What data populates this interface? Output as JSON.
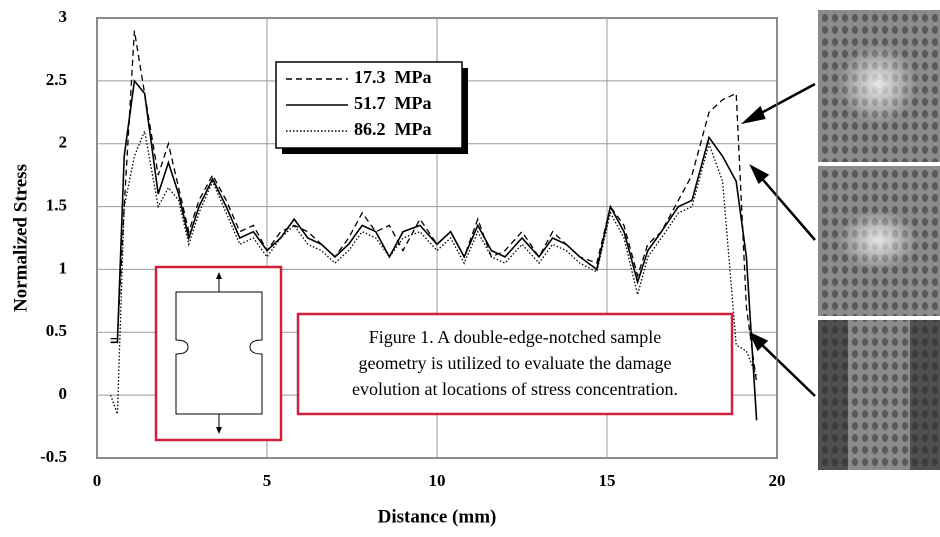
{
  "chart_data": {
    "type": "line",
    "x_label": "Distance (mm)",
    "y_label": "Normalized Stress",
    "xlim": [
      0,
      20
    ],
    "xticks": [
      0,
      5,
      10,
      15,
      20
    ],
    "ylim": [
      -0.5,
      3
    ],
    "yticks": [
      -0.5,
      0,
      0.5,
      1,
      1.5,
      2,
      2.5,
      3
    ],
    "grid": true,
    "legend_position": "upper-left",
    "x": [
      0.4,
      0.6,
      0.8,
      1.1,
      1.4,
      1.8,
      2.1,
      2.4,
      2.7,
      3.0,
      3.4,
      3.8,
      4.2,
      4.6,
      5.0,
      5.4,
      5.8,
      6.2,
      6.6,
      7.0,
      7.4,
      7.8,
      8.2,
      8.6,
      9.0,
      9.5,
      10.0,
      10.4,
      10.8,
      11.2,
      11.6,
      12.0,
      12.5,
      13.0,
      13.4,
      13.8,
      14.2,
      14.7,
      15.1,
      15.5,
      15.9,
      16.2,
      16.6,
      17.1,
      17.5,
      18.0,
      18.4,
      18.8,
      19.1,
      19.4
    ],
    "series": [
      {
        "name": "17.3  MPa",
        "color": "#000000",
        "style": "dashed",
        "values": [
          0.45,
          0.45,
          1.5,
          2.9,
          2.4,
          1.75,
          2.0,
          1.65,
          1.3,
          1.55,
          1.75,
          1.55,
          1.3,
          1.35,
          1.15,
          1.3,
          1.35,
          1.3,
          1.2,
          1.1,
          1.25,
          1.45,
          1.3,
          1.35,
          1.15,
          1.4,
          1.2,
          1.3,
          1.1,
          1.4,
          1.1,
          1.15,
          1.3,
          1.1,
          1.3,
          1.2,
          1.1,
          1.05,
          1.5,
          1.35,
          0.95,
          1.2,
          1.3,
          1.55,
          1.75,
          2.25,
          2.35,
          2.4,
          0.7,
          0.1
        ]
      },
      {
        "name": "51.7  MPa",
        "color": "#000000",
        "style": "solid",
        "values": [
          0.42,
          0.42,
          1.9,
          2.5,
          2.4,
          1.6,
          1.85,
          1.6,
          1.25,
          1.5,
          1.72,
          1.5,
          1.25,
          1.3,
          1.15,
          1.25,
          1.4,
          1.25,
          1.2,
          1.1,
          1.2,
          1.35,
          1.3,
          1.1,
          1.3,
          1.35,
          1.2,
          1.3,
          1.1,
          1.35,
          1.15,
          1.1,
          1.25,
          1.1,
          1.25,
          1.2,
          1.1,
          1.0,
          1.5,
          1.3,
          0.9,
          1.15,
          1.3,
          1.5,
          1.55,
          2.05,
          1.9,
          1.7,
          1.1,
          -0.2
        ]
      },
      {
        "name": "86.2  MPa",
        "color": "#000000",
        "style": "dotted",
        "values": [
          0.0,
          -0.15,
          1.5,
          1.9,
          2.1,
          1.5,
          1.65,
          1.55,
          1.2,
          1.45,
          1.7,
          1.45,
          1.2,
          1.25,
          1.1,
          1.25,
          1.35,
          1.2,
          1.15,
          1.05,
          1.15,
          1.3,
          1.25,
          1.1,
          1.25,
          1.3,
          1.15,
          1.25,
          1.05,
          1.3,
          1.1,
          1.05,
          1.2,
          1.05,
          1.2,
          1.15,
          1.05,
          0.98,
          1.45,
          1.25,
          0.8,
          1.1,
          1.25,
          1.45,
          1.5,
          2.0,
          1.7,
          0.4,
          0.35,
          0.15
        ]
      }
    ],
    "annotation": [
      "Figure 1. A double-edge-notched sample",
      "geometry is utilized to evaluate the damage",
      "evolution at locations of stress concentration."
    ]
  }
}
